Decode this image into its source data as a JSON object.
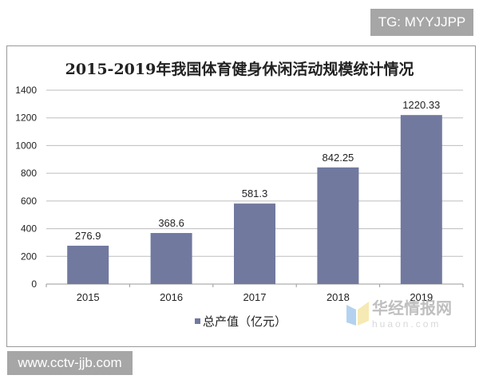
{
  "watermarks": {
    "top": "TG: MYYJJPP",
    "bottom": "www.cctv-jjb.com",
    "logo_cn": "华经情报网",
    "logo_en": "huaon.com"
  },
  "chart_data": {
    "type": "bar",
    "title": "2015-2019年我国体育健身休闲活动规模统计情况",
    "categories": [
      "2015",
      "2016",
      "2017",
      "2018",
      "2019"
    ],
    "series": [
      {
        "name": "总产值（亿元）",
        "values": [
          276.9,
          368.6,
          581.3,
          842.25,
          1220.33
        ],
        "labels": [
          "276.9",
          "368.6",
          "581.3",
          "842.25",
          "1220.33"
        ],
        "color": "#71799f"
      }
    ],
    "ylim": [
      0,
      1400
    ],
    "yticks": [
      0,
      200,
      400,
      600,
      800,
      1000,
      1200,
      1400
    ],
    "grid": true,
    "legend": "bottom"
  }
}
